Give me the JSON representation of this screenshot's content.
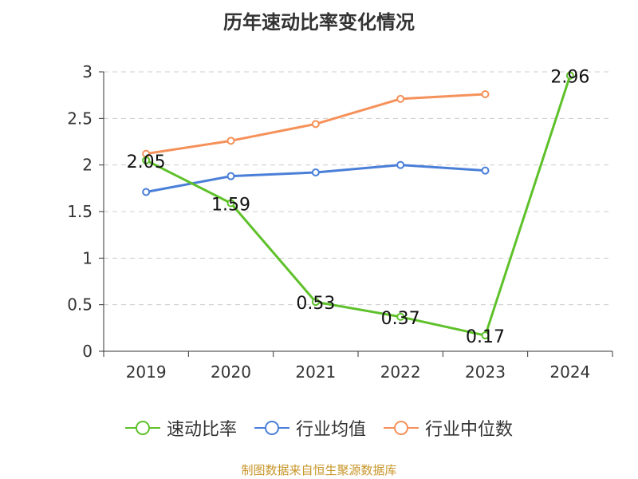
{
  "title": "历年速动比率变化情况",
  "source": "制图数据来自恒生聚源数据库",
  "colors": {
    "speed": "#5ec12a",
    "avg": "#4a7fd8",
    "median": "#f5915a",
    "grid": "#cccccc",
    "axis": "#333333"
  },
  "chart_data": {
    "type": "line",
    "title": "历年速动比率变化情况",
    "categories": [
      "2019",
      "2020",
      "2021",
      "2022",
      "2023",
      "2024"
    ],
    "ylim": [
      0,
      3
    ],
    "yticks": [
      "0",
      "0.5",
      "1",
      "1.5",
      "2",
      "2.5",
      "3"
    ],
    "grid": true,
    "legend": "bottom",
    "series": [
      {
        "name": "速动比率",
        "values": [
          2.05,
          1.59,
          0.53,
          0.37,
          0.17,
          2.96
        ],
        "labels": [
          "2.05",
          "1.59",
          "0.53",
          "0.37",
          "0.17",
          "2.96"
        ],
        "color_key": "speed"
      },
      {
        "name": "行业均值",
        "values": [
          1.71,
          1.88,
          1.92,
          2.0,
          1.94,
          null
        ],
        "color_key": "avg"
      },
      {
        "name": "行业中位数",
        "values": [
          2.12,
          2.26,
          2.44,
          2.71,
          2.76,
          null
        ],
        "color_key": "median"
      }
    ]
  }
}
